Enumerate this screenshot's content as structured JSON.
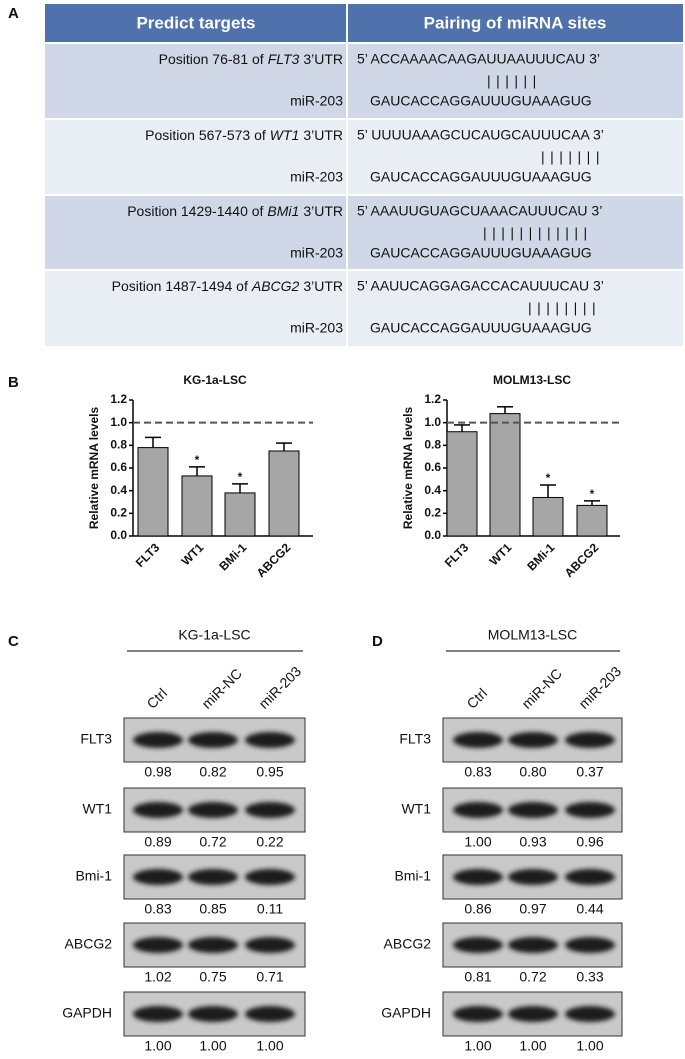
{
  "panel_a": {
    "label": "A",
    "header": [
      "Predict targets",
      "Pairing of miRNA sites"
    ],
    "rows": [
      {
        "target": [
          "Position 76-81 of",
          "FLT3",
          "3’UTR"
        ],
        "utr": "5’ ACCAAAACAAGAUUAAUUUCAU 3’",
        "pairing": "||||||",
        "mirna": "miR-203",
        "mirna_seq": "GAUCACCAGGAUUUGUAAAGUG"
      },
      {
        "target": [
          "Position 567-573 of",
          "WT1",
          "3’UTR"
        ],
        "utr": "5’ UUUUAAAGCUCAUGCAUUUCAA 3’",
        "pairing": "|||||||",
        "mirna": "miR-203",
        "mirna_seq": "GAUCACCAGGAUUUGUAAAGUG"
      },
      {
        "target": [
          "Position 1429-1440 of",
          "BMi1",
          "3’UTR"
        ],
        "utr": "5’ AAAUUGUAGCUAAACAUUUCAU 3’",
        "pairing": "||||||||||||",
        "mirna": "miR-203",
        "mirna_seq": "GAUCACCAGGAUUUGUAAAGUG"
      },
      {
        "target": [
          "Position 1487-1494 of",
          "ABCG2",
          "3’UTR"
        ],
        "utr": "5’ AAUUCAGGAGACCACAUUUCAU 3’",
        "pairing": "||||||||",
        "mirna": "miR-203",
        "mirna_seq": "GAUCACCAGGAUUUGUAAAGUG"
      }
    ]
  },
  "panel_b": {
    "label": "B"
  },
  "chart_data": [
    {
      "type": "bar",
      "title": "KG-1a-LSC",
      "ylabel": "Relative mRNA levels",
      "categories": [
        "FLT3",
        "WT1",
        "BMi-1",
        "ABCG2"
      ],
      "values": [
        0.78,
        0.53,
        0.38,
        0.75
      ],
      "errors": [
        0.09,
        0.08,
        0.08,
        0.07
      ],
      "annotations": [
        null,
        "*",
        "*",
        null
      ],
      "color": "#a6a6a6",
      "ylim": [
        0,
        1.2
      ],
      "yticks": [
        {
          "value": 0,
          "label": "0.0"
        },
        0.2,
        0.4,
        0.6,
        0.8,
        {
          "value": 1,
          "label": "1.0"
        },
        1.2
      ],
      "reference_line": 1
    },
    {
      "type": "bar",
      "title": "MOLM13-LSC",
      "ylabel": "Relative mRNA levels",
      "categories": [
        "FLT3",
        "WT1",
        "BMi-1",
        "ABCG2"
      ],
      "values": [
        0.92,
        1.08,
        0.34,
        0.27
      ],
      "errors": [
        0.06,
        0.06,
        0.11,
        0.04
      ],
      "annotations": [
        null,
        null,
        "*",
        "*"
      ],
      "color": "#a6a6a6",
      "ylim": [
        0,
        1.2
      ],
      "yticks": [
        {
          "value": 0,
          "label": "0.0"
        },
        0.2,
        0.4,
        0.6,
        0.8,
        {
          "value": 1,
          "label": "1.0"
        },
        1.2
      ],
      "reference_line": 1
    }
  ],
  "panel_c": {
    "label": "C",
    "cell_line": "KG-1a-LSC",
    "lanes": [
      "Ctrl",
      "miR-NC",
      "miR-203"
    ],
    "blots": [
      {
        "protein": "FLT3",
        "quant": [
          "0.98",
          "0.82",
          "0.95"
        ]
      },
      {
        "protein": "WT1",
        "quant": [
          "0.89",
          "0.72",
          "0.22"
        ]
      },
      {
        "protein": "Bmi-1",
        "quant": [
          "0.83",
          "0.85",
          "0.11"
        ]
      },
      {
        "protein": "ABCG2",
        "quant": [
          "1.02",
          "0.75",
          "0.71"
        ]
      },
      {
        "protein": "GAPDH",
        "quant": [
          "1.00",
          "1.00",
          "1.00"
        ]
      }
    ]
  },
  "panel_d": {
    "label": "D",
    "cell_line": "MOLM13-LSC",
    "lanes": [
      "Ctrl",
      "miR-NC",
      "miR-203"
    ],
    "blots": [
      {
        "protein": "FLT3",
        "quant": [
          "0.83",
          "0.80",
          "0.37"
        ]
      },
      {
        "protein": "WT1",
        "quant": [
          "1.00",
          "0.93",
          "0.96"
        ]
      },
      {
        "protein": "Bmi-1",
        "quant": [
          "0.86",
          "0.97",
          "0.44"
        ]
      },
      {
        "protein": "ABCG2",
        "quant": [
          "0.81",
          "0.72",
          "0.33"
        ]
      },
      {
        "protein": "GAPDH",
        "quant": [
          "1.00",
          "1.00",
          "1.00"
        ]
      }
    ]
  }
}
